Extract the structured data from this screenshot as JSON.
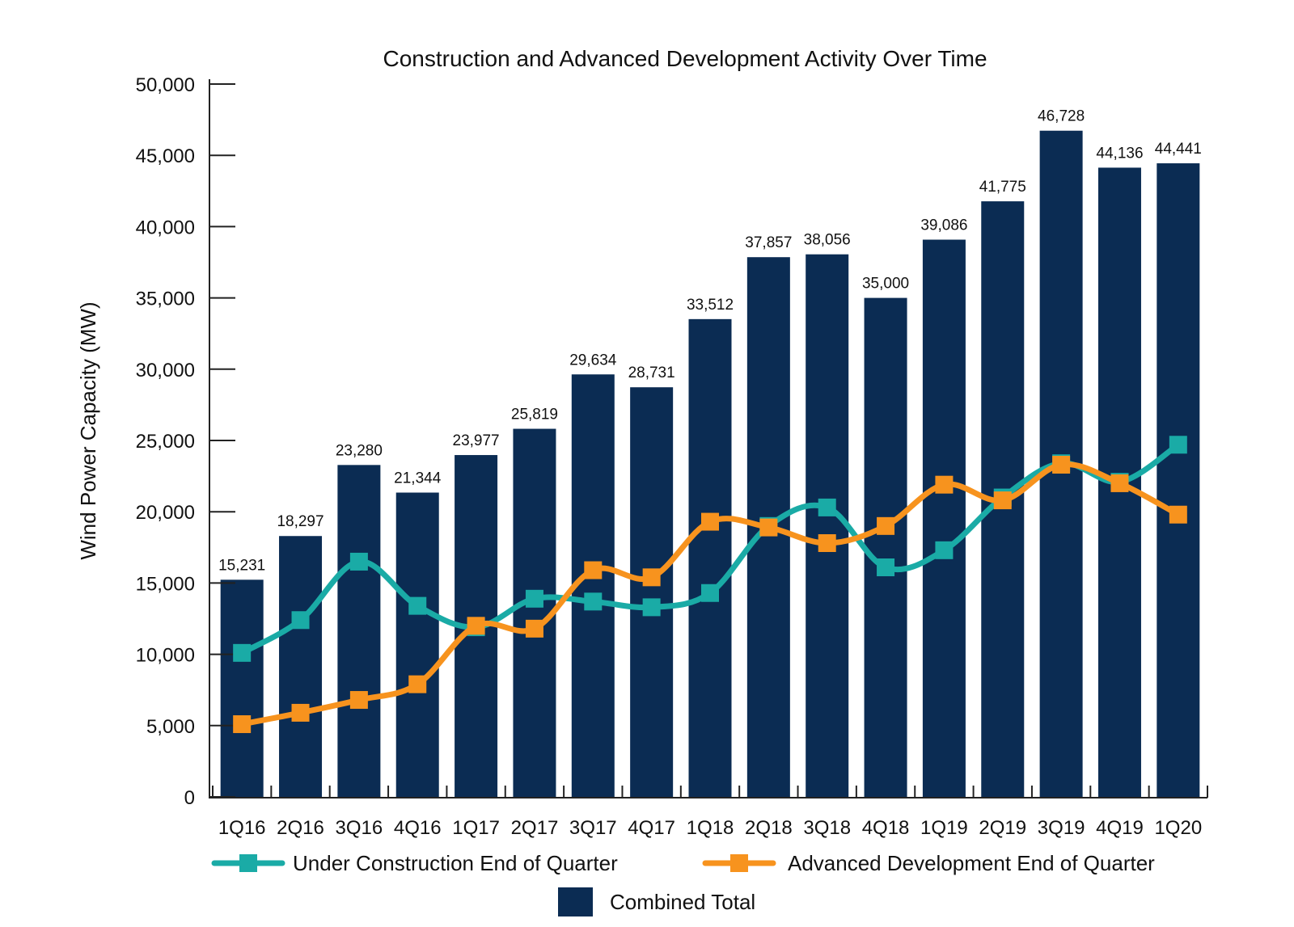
{
  "chart_data": {
    "type": "bar",
    "title": "Construction and Advanced Development Activity Over Time",
    "xlabel": "",
    "ylabel": "Wind Power Capacity (MW)",
    "ylim": [
      0,
      50000
    ],
    "yticks": [
      0,
      5000,
      10000,
      15000,
      20000,
      25000,
      30000,
      35000,
      40000,
      45000,
      50000
    ],
    "ytick_labels": [
      "0",
      "5,000",
      "10,000",
      "15,000",
      "20,000",
      "25,000",
      "30,000",
      "35,000",
      "40,000",
      "45,000",
      "50,000"
    ],
    "categories": [
      "1Q16",
      "2Q16",
      "3Q16",
      "4Q16",
      "1Q17",
      "2Q17",
      "3Q17",
      "4Q17",
      "1Q18",
      "2Q18",
      "3Q18",
      "4Q18",
      "1Q19",
      "2Q19",
      "3Q19",
      "4Q19",
      "1Q20"
    ],
    "grid": false,
    "legend_position": "bottom",
    "series": [
      {
        "name": "Combined Total",
        "kind": "bar",
        "color": "#0b2c53",
        "values": [
          15231,
          18297,
          23280,
          21344,
          23977,
          25819,
          29634,
          28731,
          33512,
          37857,
          38056,
          35000,
          39086,
          41775,
          46728,
          44136,
          44441
        ],
        "labels": [
          "15,231",
          "18,297",
          "23,280",
          "21,344",
          "23,977",
          "25,819",
          "29,634",
          "28,731",
          "33,512",
          "37,857",
          "38,056",
          "35,000",
          "39,086",
          "41,775",
          "46,728",
          "44,136",
          "44,441"
        ]
      },
      {
        "name": "Under Construction End of Quarter",
        "kind": "line",
        "color": "#1aaba6",
        "values": [
          10100,
          12400,
          16500,
          13400,
          11900,
          13900,
          13700,
          13300,
          14300,
          19000,
          20300,
          16100,
          17300,
          21000,
          23400,
          22100,
          24700
        ]
      },
      {
        "name": "Advanced Development End of Quarter",
        "kind": "line",
        "color": "#f7931e",
        "values": [
          5100,
          5900,
          6800,
          7900,
          12000,
          11800,
          15900,
          15400,
          19300,
          18900,
          17800,
          19000,
          21900,
          20800,
          23300,
          22000,
          19800
        ]
      }
    ]
  }
}
